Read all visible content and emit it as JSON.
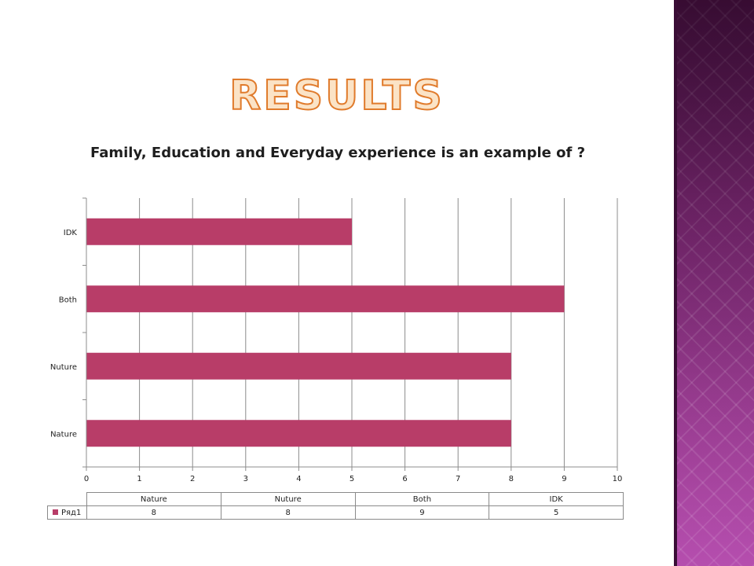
{
  "slide": {
    "title": "RESULTS"
  },
  "colors": {
    "bar": "#b83d68",
    "title_fill": "#fbe3c6",
    "title_stroke": "#e07b2c",
    "side_panel": "#6a2560"
  },
  "chart_data": {
    "type": "bar",
    "orientation": "horizontal",
    "title": "Family, Education and Everyday experience is an example of ?",
    "categories": [
      "Nature",
      "Nuture",
      "Both",
      "IDK"
    ],
    "series": [
      {
        "name": "Ряд1",
        "values": [
          8,
          8,
          9,
          5
        ]
      }
    ],
    "x_ticks": [
      "0",
      "1",
      "2",
      "3",
      "4",
      "5",
      "6",
      "7",
      "8",
      "9",
      "10"
    ],
    "xlim": [
      0,
      10
    ],
    "grid": "vertical",
    "legend": "data-table"
  },
  "table": {
    "headers": [
      "Nature",
      "Nuture",
      "Both",
      "IDK"
    ],
    "series_label": "Ряд1",
    "values": [
      "8",
      "8",
      "9",
      "5"
    ]
  }
}
